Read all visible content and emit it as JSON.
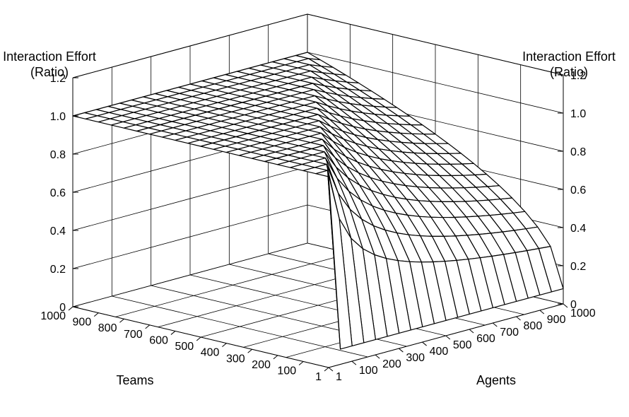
{
  "chart_data": {
    "type": "surface3d",
    "z_axis": {
      "label_line1": "Interaction Effort",
      "label_line2": "(Ratio)",
      "ticks": [
        "0",
        "0.2",
        "0.4",
        "0.6",
        "0.8",
        "1.0",
        "1.2"
      ],
      "range": [
        0,
        1.2
      ]
    },
    "x_axis": {
      "label": "Teams",
      "ticks": [
        "1",
        "100",
        "200",
        "300",
        "400",
        "500",
        "600",
        "700",
        "800",
        "900",
        "1000"
      ],
      "range": [
        1,
        1000
      ]
    },
    "y_axis": {
      "label": "Agents",
      "ticks": [
        "1",
        "100",
        "200",
        "300",
        "400",
        "500",
        "600",
        "700",
        "800",
        "900",
        "1000"
      ],
      "range": [
        1,
        1000
      ]
    },
    "grid": true,
    "surface": {
      "description_values": "z = 1.0 where Teams >= Agents; for Teams < Agents z drops toward ~0.08 near Teams = 1",
      "plateau_value": 1.0,
      "min_value": 0.08
    }
  }
}
